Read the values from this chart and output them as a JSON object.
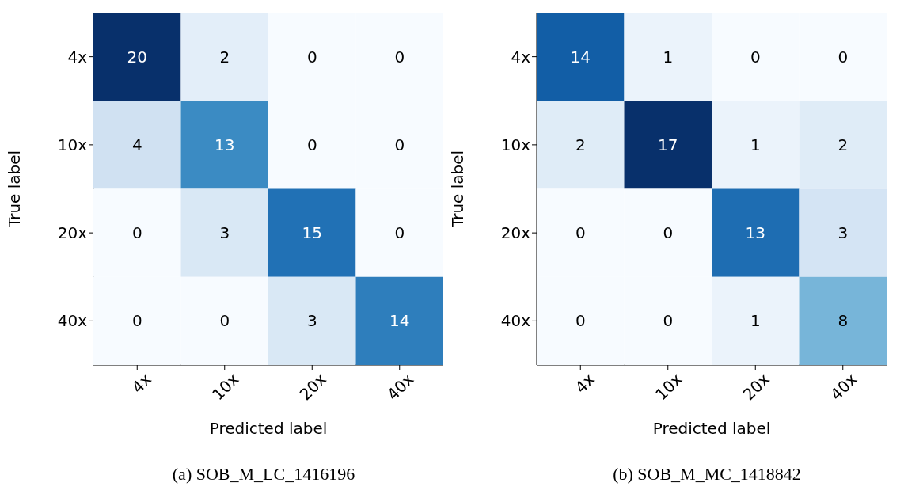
{
  "chart_data": [
    {
      "type": "heatmap",
      "title": "(a) SOB_M_LC_1416196",
      "xlabel": "Predicted label",
      "ylabel": "True label",
      "categories": [
        "4x",
        "10x",
        "20x",
        "40x"
      ],
      "y_categories": [
        "4x",
        "10x",
        "20x",
        "40x"
      ],
      "cells": [
        [
          20,
          2,
          0,
          0
        ],
        [
          4,
          13,
          0,
          0
        ],
        [
          0,
          3,
          15,
          0
        ],
        [
          0,
          0,
          3,
          14
        ]
      ],
      "data_labels": true
    },
    {
      "type": "heatmap",
      "title": "(b) SOB_M_MC_1418842",
      "xlabel": "Predicted label",
      "ylabel": "True label",
      "categories": [
        "4x",
        "10x",
        "20x",
        "40x"
      ],
      "y_categories": [
        "4x",
        "10x",
        "20x",
        "40x"
      ],
      "cells": [
        [
          14,
          1,
          0,
          0
        ],
        [
          2,
          17,
          1,
          2
        ],
        [
          0,
          0,
          13,
          3
        ],
        [
          0,
          0,
          1,
          8
        ]
      ],
      "data_labels": true
    }
  ]
}
